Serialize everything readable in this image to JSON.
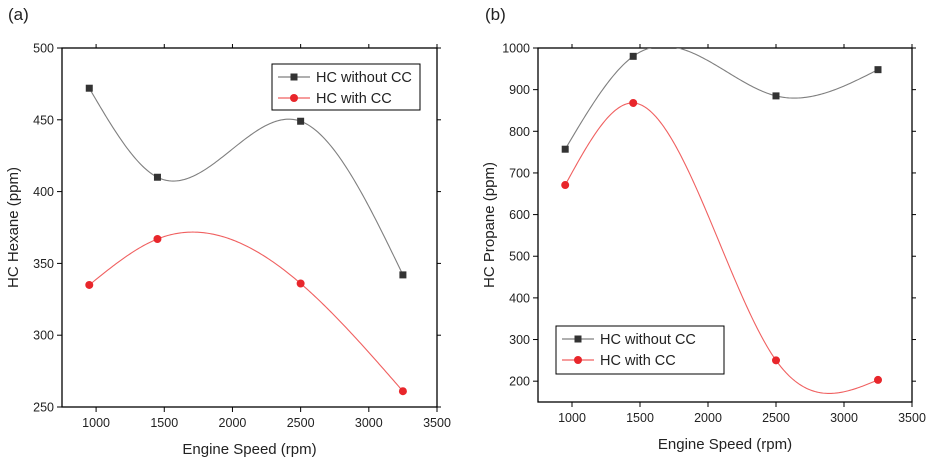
{
  "chart_data": [
    {
      "type": "line",
      "panel_label": "(a)",
      "xlabel": "Engine Speed (rpm)",
      "ylabel": "HC Hexane (ppm)",
      "xlim": [
        750,
        3500
      ],
      "ylim": [
        250,
        500
      ],
      "xticks": [
        1000,
        1500,
        2000,
        2500,
        3000,
        3500
      ],
      "yticks": [
        250,
        300,
        350,
        400,
        450,
        500
      ],
      "legend_position": "top-right",
      "x": [
        950,
        1450,
        2500,
        3250
      ],
      "series": [
        {
          "name": "HC without CC",
          "marker": "square",
          "color": "#333333",
          "line_color": "#7f7f7f",
          "values": [
            472,
            410,
            449,
            342
          ]
        },
        {
          "name": "HC with CC",
          "marker": "circle",
          "color": "#e8262b",
          "line_color": "#f06060",
          "values": [
            335,
            367,
            336,
            261
          ]
        }
      ]
    },
    {
      "type": "line",
      "panel_label": "(b)",
      "xlabel": "Engine Speed (rpm)",
      "ylabel": "HC Propane (ppm)",
      "xlim": [
        750,
        3500
      ],
      "ylim": [
        150,
        1000
      ],
      "xticks": [
        1000,
        1500,
        2000,
        2500,
        3000,
        3500
      ],
      "yticks": [
        200,
        300,
        400,
        500,
        600,
        700,
        800,
        900,
        1000
      ],
      "legend_position": "bottom-left",
      "x": [
        950,
        1450,
        2500,
        3250
      ],
      "series": [
        {
          "name": "HC without CC",
          "marker": "square",
          "color": "#333333",
          "line_color": "#7f7f7f",
          "values": [
            757,
            980,
            885,
            948
          ]
        },
        {
          "name": "HC with CC",
          "marker": "circle",
          "color": "#e8262b",
          "line_color": "#f06060",
          "values": [
            671,
            868,
            250,
            203
          ]
        }
      ]
    }
  ]
}
